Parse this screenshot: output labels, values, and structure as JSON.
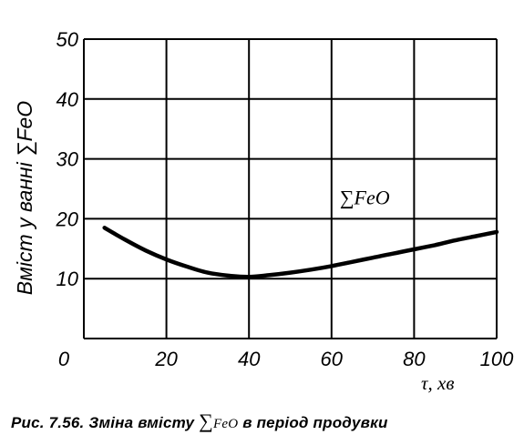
{
  "chart_data": {
    "type": "line",
    "ylabel": "Вміст у ванні ∑FeO",
    "xlabel": "τ, хв",
    "xlim": [
      0,
      100
    ],
    "ylim": [
      0,
      50
    ],
    "x_ticks": [
      "0",
      "20",
      "40",
      "60",
      "80",
      "100"
    ],
    "y_ticks": [
      "10",
      "20",
      "30",
      "40",
      "50"
    ],
    "grid": true,
    "series": [
      {
        "name": "∑FeO",
        "x": [
          5,
          10,
          15,
          20,
          25,
          30,
          35,
          40,
          45,
          50,
          55,
          60,
          65,
          70,
          75,
          80,
          85,
          90,
          95,
          100
        ],
        "y": [
          18.5,
          16.5,
          14.7,
          13.2,
          12.0,
          11.0,
          10.5,
          10.3,
          10.6,
          11.0,
          11.5,
          12.1,
          12.8,
          13.5,
          14.2,
          14.9,
          15.6,
          16.4,
          17.1,
          17.8
        ]
      }
    ]
  },
  "caption": {
    "prefix": "Рис. 7.56. Зміна вмісту",
    "sum_symbol": "∑",
    "formula": "FeO",
    "suffix": "в період продувки"
  }
}
